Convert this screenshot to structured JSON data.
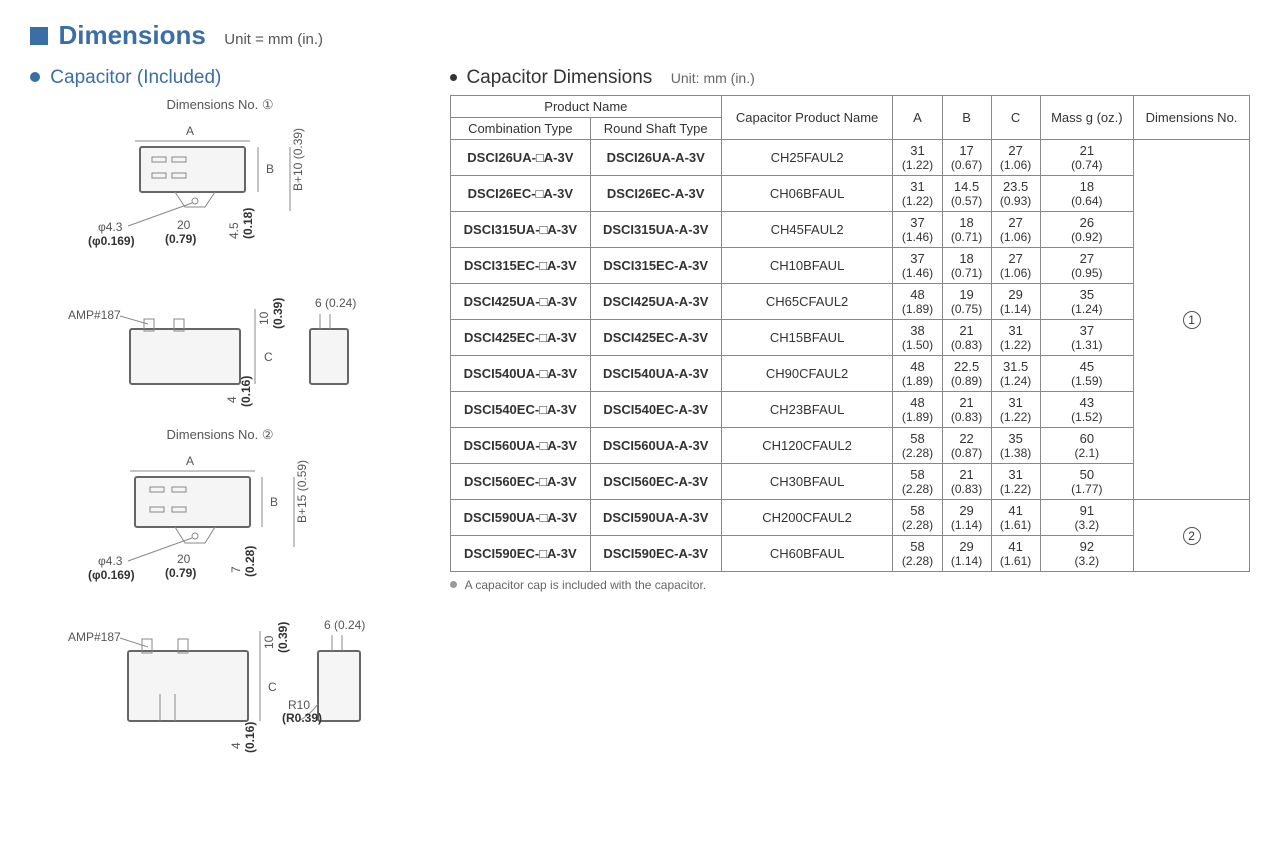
{
  "page": {
    "title": "Dimensions",
    "unit_label": "Unit = mm (in.)"
  },
  "left_section": {
    "title": "Capacitor (Included)",
    "dim_no_1": "Dimensions No. ①",
    "dim_no_2": "Dimensions No. ②",
    "labels": {
      "phi": "φ4.3",
      "phi_in": "(φ0.169)",
      "twenty": "20",
      "twenty_in": "(0.79)",
      "fourp5": "4.5",
      "fourp5_in": "(0.18)",
      "bp10": "B+10 (0.39)",
      "bp15": "B+15 (0.59)",
      "seven": "7",
      "seven_in": "(0.28)",
      "amp": "AMP#187",
      "ten": "10",
      "ten_in": "(0.39)",
      "six": "6 (0.24)",
      "four": "4",
      "four_in": "(0.16)",
      "r10": "R10",
      "r10_in": "(R0.39)",
      "a": "A",
      "b": "B",
      "c": "C"
    }
  },
  "right_section": {
    "title": "Capacitor Dimensions",
    "unit_label": "Unit: mm (in.)",
    "headers": {
      "product_name": "Product Name",
      "combination": "Combination Type",
      "round_shaft": "Round Shaft Type",
      "cap_product": "Capacitor Product Name",
      "a": "A",
      "b": "B",
      "c": "C",
      "mass": "Mass g (oz.)",
      "dim_no": "Dimensions No."
    },
    "rows": [
      {
        "comb": "DSCI26UA-□A-3V",
        "round": "DSCI26UA-A-3V",
        "cap": "CH25FAUL2",
        "a_mm": "31",
        "a_in": "(1.22)",
        "b_mm": "17",
        "b_in": "(0.67)",
        "c_mm": "27",
        "c_in": "(1.06)",
        "m_mm": "21",
        "m_in": "(0.74)"
      },
      {
        "comb": "DSCI26EC-□A-3V",
        "round": "DSCI26EC-A-3V",
        "cap": "CH06BFAUL",
        "a_mm": "31",
        "a_in": "(1.22)",
        "b_mm": "14.5",
        "b_in": "(0.57)",
        "c_mm": "23.5",
        "c_in": "(0.93)",
        "m_mm": "18",
        "m_in": "(0.64)"
      },
      {
        "comb": "DSCI315UA-□A-3V",
        "round": "DSCI315UA-A-3V",
        "cap": "CH45FAUL2",
        "a_mm": "37",
        "a_in": "(1.46)",
        "b_mm": "18",
        "b_in": "(0.71)",
        "c_mm": "27",
        "c_in": "(1.06)",
        "m_mm": "26",
        "m_in": "(0.92)"
      },
      {
        "comb": "DSCI315EC-□A-3V",
        "round": "DSCI315EC-A-3V",
        "cap": "CH10BFAUL",
        "a_mm": "37",
        "a_in": "(1.46)",
        "b_mm": "18",
        "b_in": "(0.71)",
        "c_mm": "27",
        "c_in": "(1.06)",
        "m_mm": "27",
        "m_in": "(0.95)"
      },
      {
        "comb": "DSCI425UA-□A-3V",
        "round": "DSCI425UA-A-3V",
        "cap": "CH65CFAUL2",
        "a_mm": "48",
        "a_in": "(1.89)",
        "b_mm": "19",
        "b_in": "(0.75)",
        "c_mm": "29",
        "c_in": "(1.14)",
        "m_mm": "35",
        "m_in": "(1.24)"
      },
      {
        "comb": "DSCI425EC-□A-3V",
        "round": "DSCI425EC-A-3V",
        "cap": "CH15BFAUL",
        "a_mm": "38",
        "a_in": "(1.50)",
        "b_mm": "21",
        "b_in": "(0.83)",
        "c_mm": "31",
        "c_in": "(1.22)",
        "m_mm": "37",
        "m_in": "(1.31)"
      },
      {
        "comb": "DSCI540UA-□A-3V",
        "round": "DSCI540UA-A-3V",
        "cap": "CH90CFAUL2",
        "a_mm": "48",
        "a_in": "(1.89)",
        "b_mm": "22.5",
        "b_in": "(0.89)",
        "c_mm": "31.5",
        "c_in": "(1.24)",
        "m_mm": "45",
        "m_in": "(1.59)"
      },
      {
        "comb": "DSCI540EC-□A-3V",
        "round": "DSCI540EC-A-3V",
        "cap": "CH23BFAUL",
        "a_mm": "48",
        "a_in": "(1.89)",
        "b_mm": "21",
        "b_in": "(0.83)",
        "c_mm": "31",
        "c_in": "(1.22)",
        "m_mm": "43",
        "m_in": "(1.52)"
      },
      {
        "comb": "DSCI560UA-□A-3V",
        "round": "DSCI560UA-A-3V",
        "cap": "CH120CFAUL2",
        "a_mm": "58",
        "a_in": "(2.28)",
        "b_mm": "22",
        "b_in": "(0.87)",
        "c_mm": "35",
        "c_in": "(1.38)",
        "m_mm": "60",
        "m_in": "(2.1)"
      },
      {
        "comb": "DSCI560EC-□A-3V",
        "round": "DSCI560EC-A-3V",
        "cap": "CH30BFAUL",
        "a_mm": "58",
        "a_in": "(2.28)",
        "b_mm": "21",
        "b_in": "(0.83)",
        "c_mm": "31",
        "c_in": "(1.22)",
        "m_mm": "50",
        "m_in": "(1.77)"
      },
      {
        "comb": "DSCI590UA-□A-3V",
        "round": "DSCI590UA-A-3V",
        "cap": "CH200CFAUL2",
        "a_mm": "58",
        "a_in": "(2.28)",
        "b_mm": "29",
        "b_in": "(1.14)",
        "c_mm": "41",
        "c_in": "(1.61)",
        "m_mm": "91",
        "m_in": "(3.2)"
      },
      {
        "comb": "DSCI590EC-□A-3V",
        "round": "DSCI590EC-A-3V",
        "cap": "CH60BFAUL",
        "a_mm": "58",
        "a_in": "(2.28)",
        "b_mm": "29",
        "b_in": "(1.14)",
        "c_mm": "41",
        "c_in": "(1.61)",
        "m_mm": "92",
        "m_in": "(3.2)"
      }
    ],
    "dim_group_1": "①",
    "dim_group_2": "②",
    "footer_note": "A capacitor cap is included with the capacitor."
  }
}
